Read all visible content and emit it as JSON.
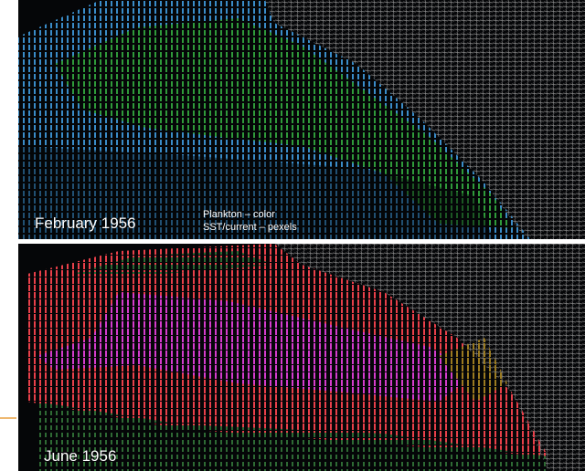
{
  "panels": [
    {
      "label": "February 1956",
      "legend": [
        "Plankton – color",
        "SST/current – pexels"
      ]
    },
    {
      "label": "June 1956"
    }
  ]
}
